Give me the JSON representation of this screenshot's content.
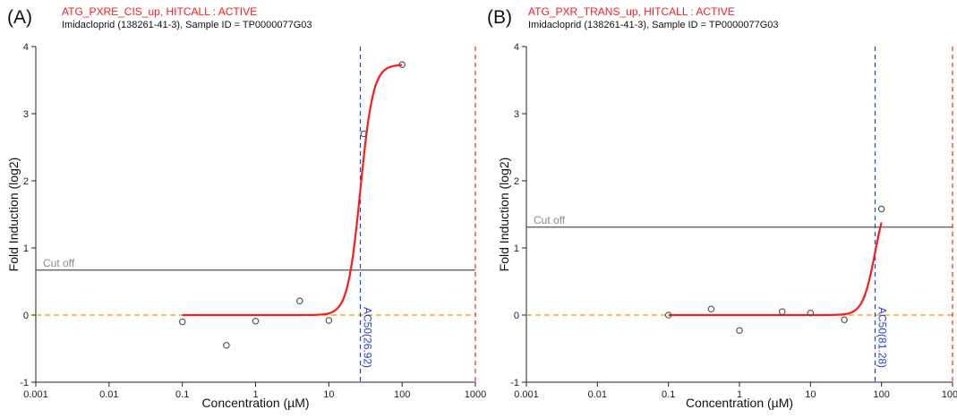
{
  "chart_data": [
    {
      "type": "scatter",
      "panel_label": "(A)",
      "title": "ATG_PXRE_CIS_up, HITCALL : ACTIVE",
      "subtitle": "Imidacloprid (138261-41-3), Sample ID = TP0000077G03",
      "xlabel": "Concentration (µM)",
      "ylabel": "Fold Induction (log2)",
      "x_scale": "log",
      "xlim": [
        0.001,
        1000
      ],
      "ylim": [
        -1,
        4
      ],
      "x_ticks": [
        "0.001",
        "0.01",
        "0.1",
        "1",
        "10",
        "100",
        "1000"
      ],
      "y_ticks": [
        "-1",
        "0",
        "1",
        "2",
        "3",
        "4"
      ],
      "grid": false,
      "points": {
        "x": [
          0.1,
          0.4,
          1,
          4,
          10,
          30,
          100
        ],
        "y": [
          -0.1,
          -0.45,
          -0.09,
          0.21,
          -0.08,
          2.7,
          3.73
        ]
      },
      "fit_curve": {
        "model": "hill",
        "bottom": 0,
        "top": 3.73,
        "ac50": 26.92,
        "hill_slope": 5,
        "x_range": [
          0.1,
          100
        ],
        "color": "#ff1a1a"
      },
      "cutoff": {
        "label": "Cut off",
        "value": 0.67,
        "color": "#555555"
      },
      "baseline": {
        "value": 0,
        "color": "#f5a623"
      },
      "ac50_line": {
        "label": "AC50(26.92)",
        "value": 26.92,
        "color": "#1f3fe0"
      },
      "max_conc_line": {
        "value": 1000,
        "color": "#ee2222"
      }
    },
    {
      "type": "scatter",
      "panel_label": "(B)",
      "title": "ATG_PXR_TRANS_up, HITCALL : ACTIVE",
      "subtitle": "Imidacloprid (138261-41-3), Sample ID = TP0000077G03",
      "xlabel": "Concentration (µM)",
      "ylabel": "Fold Induction (log2)",
      "x_scale": "log",
      "xlim": [
        0.001,
        1000
      ],
      "ylim": [
        -1,
        4
      ],
      "x_ticks": [
        "0.001",
        "0.01",
        "0.1",
        "1",
        "10",
        "100",
        "1000"
      ],
      "y_ticks": [
        "-1",
        "0",
        "1",
        "2",
        "3",
        "4"
      ],
      "grid": false,
      "points": {
        "x": [
          0.1,
          0.4,
          1,
          4,
          10,
          30,
          100
        ],
        "y": [
          0.0,
          0.09,
          -0.23,
          0.05,
          0.03,
          -0.07,
          1.58
        ]
      },
      "fit_curve": {
        "model": "hill",
        "bottom": 0,
        "top": 1.87,
        "ac50": 81.28,
        "hill_slope": 5,
        "x_range": [
          0.1,
          100
        ],
        "color": "#ff1a1a"
      },
      "cutoff": {
        "label": "Cut off",
        "value": 1.31,
        "color": "#555555"
      },
      "baseline": {
        "value": 0,
        "color": "#f5a623"
      },
      "ac50_line": {
        "label": "AC50(81.28)",
        "value": 81.28,
        "color": "#1f3fe0"
      },
      "max_conc_line": {
        "value": 1000,
        "color": "#ee2222"
      }
    }
  ]
}
